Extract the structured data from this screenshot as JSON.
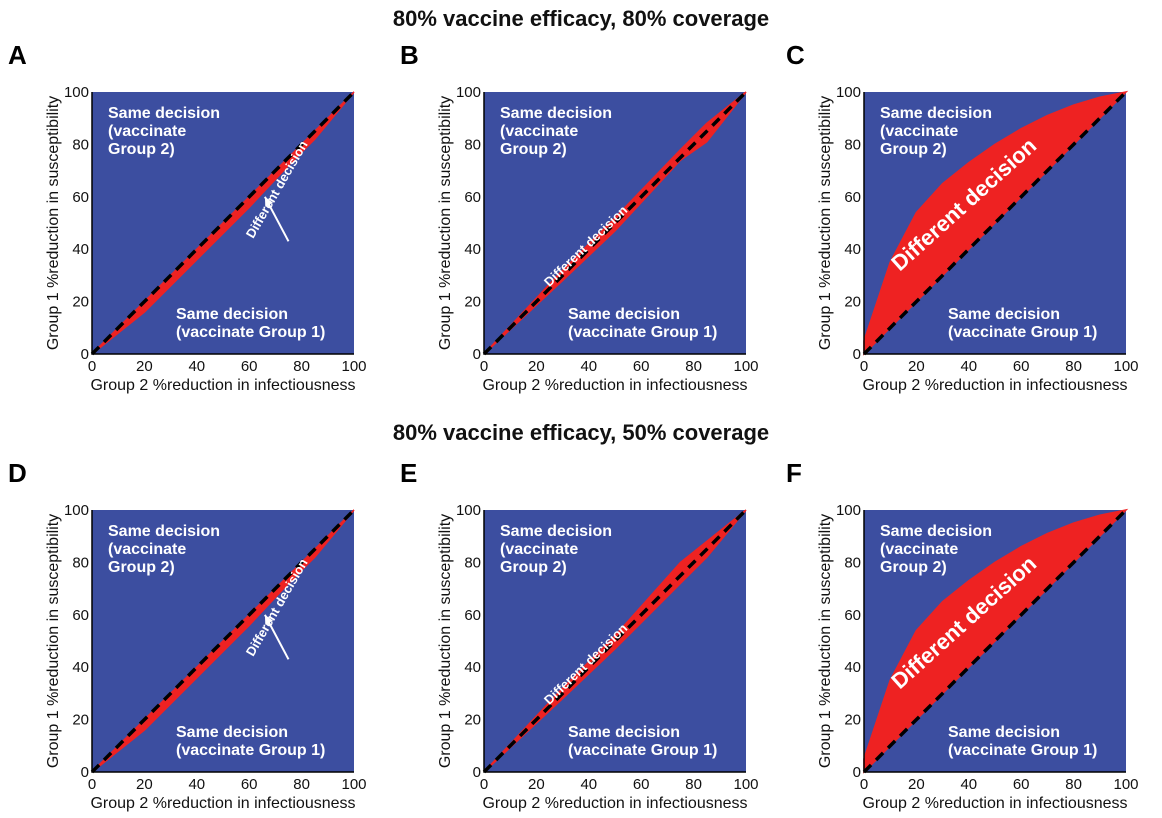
{
  "row_titles": [
    "80% vaccine efficacy, 80% coverage",
    "80% vaccine efficacy, 50% coverage"
  ],
  "colors": {
    "background_region": "#3c4ea0",
    "different_region": "#ee2222",
    "diagonal": "#000000"
  },
  "chart_data": [
    {
      "panel": "A",
      "type": "area",
      "xlabel": "Group 2 %reduction in infectiousness",
      "ylabel": "Group 1 %reduction in susceptibility",
      "xlim": [
        0,
        100
      ],
      "ylim": [
        0,
        100
      ],
      "ticks": [
        "0",
        "20",
        "40",
        "60",
        "80",
        "100"
      ],
      "diagonal": true,
      "different_region": {
        "label": "Different decision",
        "arrow": true,
        "upper": [
          [
            0,
            0
          ],
          [
            100,
            100
          ]
        ],
        "lower": [
          [
            0,
            0
          ],
          [
            20,
            16
          ],
          [
            40,
            36
          ],
          [
            60,
            56
          ],
          [
            75,
            72
          ],
          [
            85,
            82
          ],
          [
            100,
            100
          ]
        ]
      },
      "upper_text": [
        "Same decision",
        "(vaccinate",
        "Group 2)"
      ],
      "lower_text": [
        "Same decision",
        "(vaccinate Group 1)"
      ]
    },
    {
      "panel": "B",
      "type": "area",
      "xlabel": "Group 2 %reduction in infectiousness",
      "ylabel": "Group 1 %reduction in susceptibility",
      "xlim": [
        0,
        100
      ],
      "ylim": [
        0,
        100
      ],
      "ticks": [
        "0",
        "20",
        "40",
        "60",
        "80",
        "100"
      ],
      "diagonal": true,
      "different_region": {
        "label": "Different decision",
        "arrow": false,
        "upper": [
          [
            0,
            0
          ],
          [
            30,
            32
          ],
          [
            50,
            52
          ],
          [
            75,
            78
          ],
          [
            85,
            88
          ],
          [
            100,
            100
          ]
        ],
        "lower": [
          [
            0,
            0
          ],
          [
            30,
            28
          ],
          [
            50,
            47
          ],
          [
            75,
            74
          ],
          [
            85,
            81
          ],
          [
            100,
            100
          ]
        ]
      },
      "upper_text": [
        "Same decision",
        "(vaccinate",
        "Group 2)"
      ],
      "lower_text": [
        "Same decision",
        "(vaccinate Group 1)"
      ]
    },
    {
      "panel": "C",
      "type": "area",
      "xlabel": "Group 2 %reduction in infectiousness",
      "ylabel": "Group 1 %reduction in susceptibility",
      "xlim": [
        0,
        100
      ],
      "ylim": [
        0,
        100
      ],
      "ticks": [
        "0",
        "20",
        "40",
        "60",
        "80",
        "100"
      ],
      "diagonal": true,
      "different_region": {
        "label": "Different decision",
        "arrow": false,
        "upper": [
          [
            0,
            5
          ],
          [
            5,
            20
          ],
          [
            10,
            35
          ],
          [
            20,
            54
          ],
          [
            30,
            65
          ],
          [
            40,
            73
          ],
          [
            50,
            80
          ],
          [
            60,
            86
          ],
          [
            70,
            91
          ],
          [
            80,
            95
          ],
          [
            90,
            98
          ],
          [
            100,
            100
          ]
        ],
        "lower": [
          [
            0,
            0
          ],
          [
            100,
            100
          ]
        ]
      },
      "upper_text": [
        "Same decision",
        "(vaccinate",
        "Group 2)"
      ],
      "lower_text": [
        "Same decision",
        "(vaccinate Group 1)"
      ]
    },
    {
      "panel": "D",
      "type": "area",
      "xlabel": "Group 2 %reduction in infectiousness",
      "ylabel": "Group 1 %reduction in susceptibility",
      "xlim": [
        0,
        100
      ],
      "ylim": [
        0,
        100
      ],
      "ticks": [
        "0",
        "20",
        "40",
        "60",
        "80",
        "100"
      ],
      "diagonal": true,
      "different_region": {
        "label": "Different decision",
        "arrow": true,
        "upper": [
          [
            0,
            0
          ],
          [
            100,
            100
          ]
        ],
        "lower": [
          [
            0,
            0
          ],
          [
            20,
            16
          ],
          [
            40,
            36
          ],
          [
            60,
            56
          ],
          [
            75,
            72
          ],
          [
            85,
            82
          ],
          [
            100,
            100
          ]
        ]
      },
      "upper_text": [
        "Same decision",
        "(vaccinate",
        "Group 2)"
      ],
      "lower_text": [
        "Same decision",
        "(vaccinate Group 1)"
      ]
    },
    {
      "panel": "E",
      "type": "area",
      "xlabel": "Group 2 %reduction in infectiousness",
      "ylabel": "Group 1 %reduction in susceptibility",
      "xlim": [
        0,
        100
      ],
      "ylim": [
        0,
        100
      ],
      "ticks": [
        "0",
        "20",
        "40",
        "60",
        "80",
        "100"
      ],
      "diagonal": true,
      "different_region": {
        "label": "Different decision",
        "arrow": false,
        "upper": [
          [
            0,
            0
          ],
          [
            30,
            32
          ],
          [
            50,
            52
          ],
          [
            75,
            80
          ],
          [
            85,
            88
          ],
          [
            100,
            100
          ]
        ],
        "lower": [
          [
            0,
            0
          ],
          [
            30,
            28
          ],
          [
            50,
            47
          ],
          [
            75,
            72
          ],
          [
            85,
            82
          ],
          [
            100,
            100
          ]
        ]
      },
      "upper_text": [
        "Same decision",
        "(vaccinate",
        "Group 2)"
      ],
      "lower_text": [
        "Same decision",
        "(vaccinate Group 1)"
      ]
    },
    {
      "panel": "F",
      "type": "area",
      "xlabel": "Group 2 %reduction in infectiousness",
      "ylabel": "Group 1 %reduction in susceptibility",
      "xlim": [
        0,
        100
      ],
      "ylim": [
        0,
        100
      ],
      "ticks": [
        "0",
        "20",
        "40",
        "60",
        "80",
        "100"
      ],
      "diagonal": true,
      "different_region": {
        "label": "Different decision",
        "arrow": false,
        "upper": [
          [
            0,
            5
          ],
          [
            5,
            20
          ],
          [
            10,
            35
          ],
          [
            20,
            54
          ],
          [
            30,
            65
          ],
          [
            40,
            73
          ],
          [
            50,
            80
          ],
          [
            60,
            86
          ],
          [
            70,
            91
          ],
          [
            80,
            95
          ],
          [
            90,
            98
          ],
          [
            100,
            100
          ]
        ],
        "lower": [
          [
            0,
            0
          ],
          [
            100,
            100
          ]
        ]
      },
      "upper_text": [
        "Same decision",
        "(vaccinate",
        "Group 2)"
      ],
      "lower_text": [
        "Same decision",
        "(vaccinate Group 1)"
      ]
    }
  ]
}
